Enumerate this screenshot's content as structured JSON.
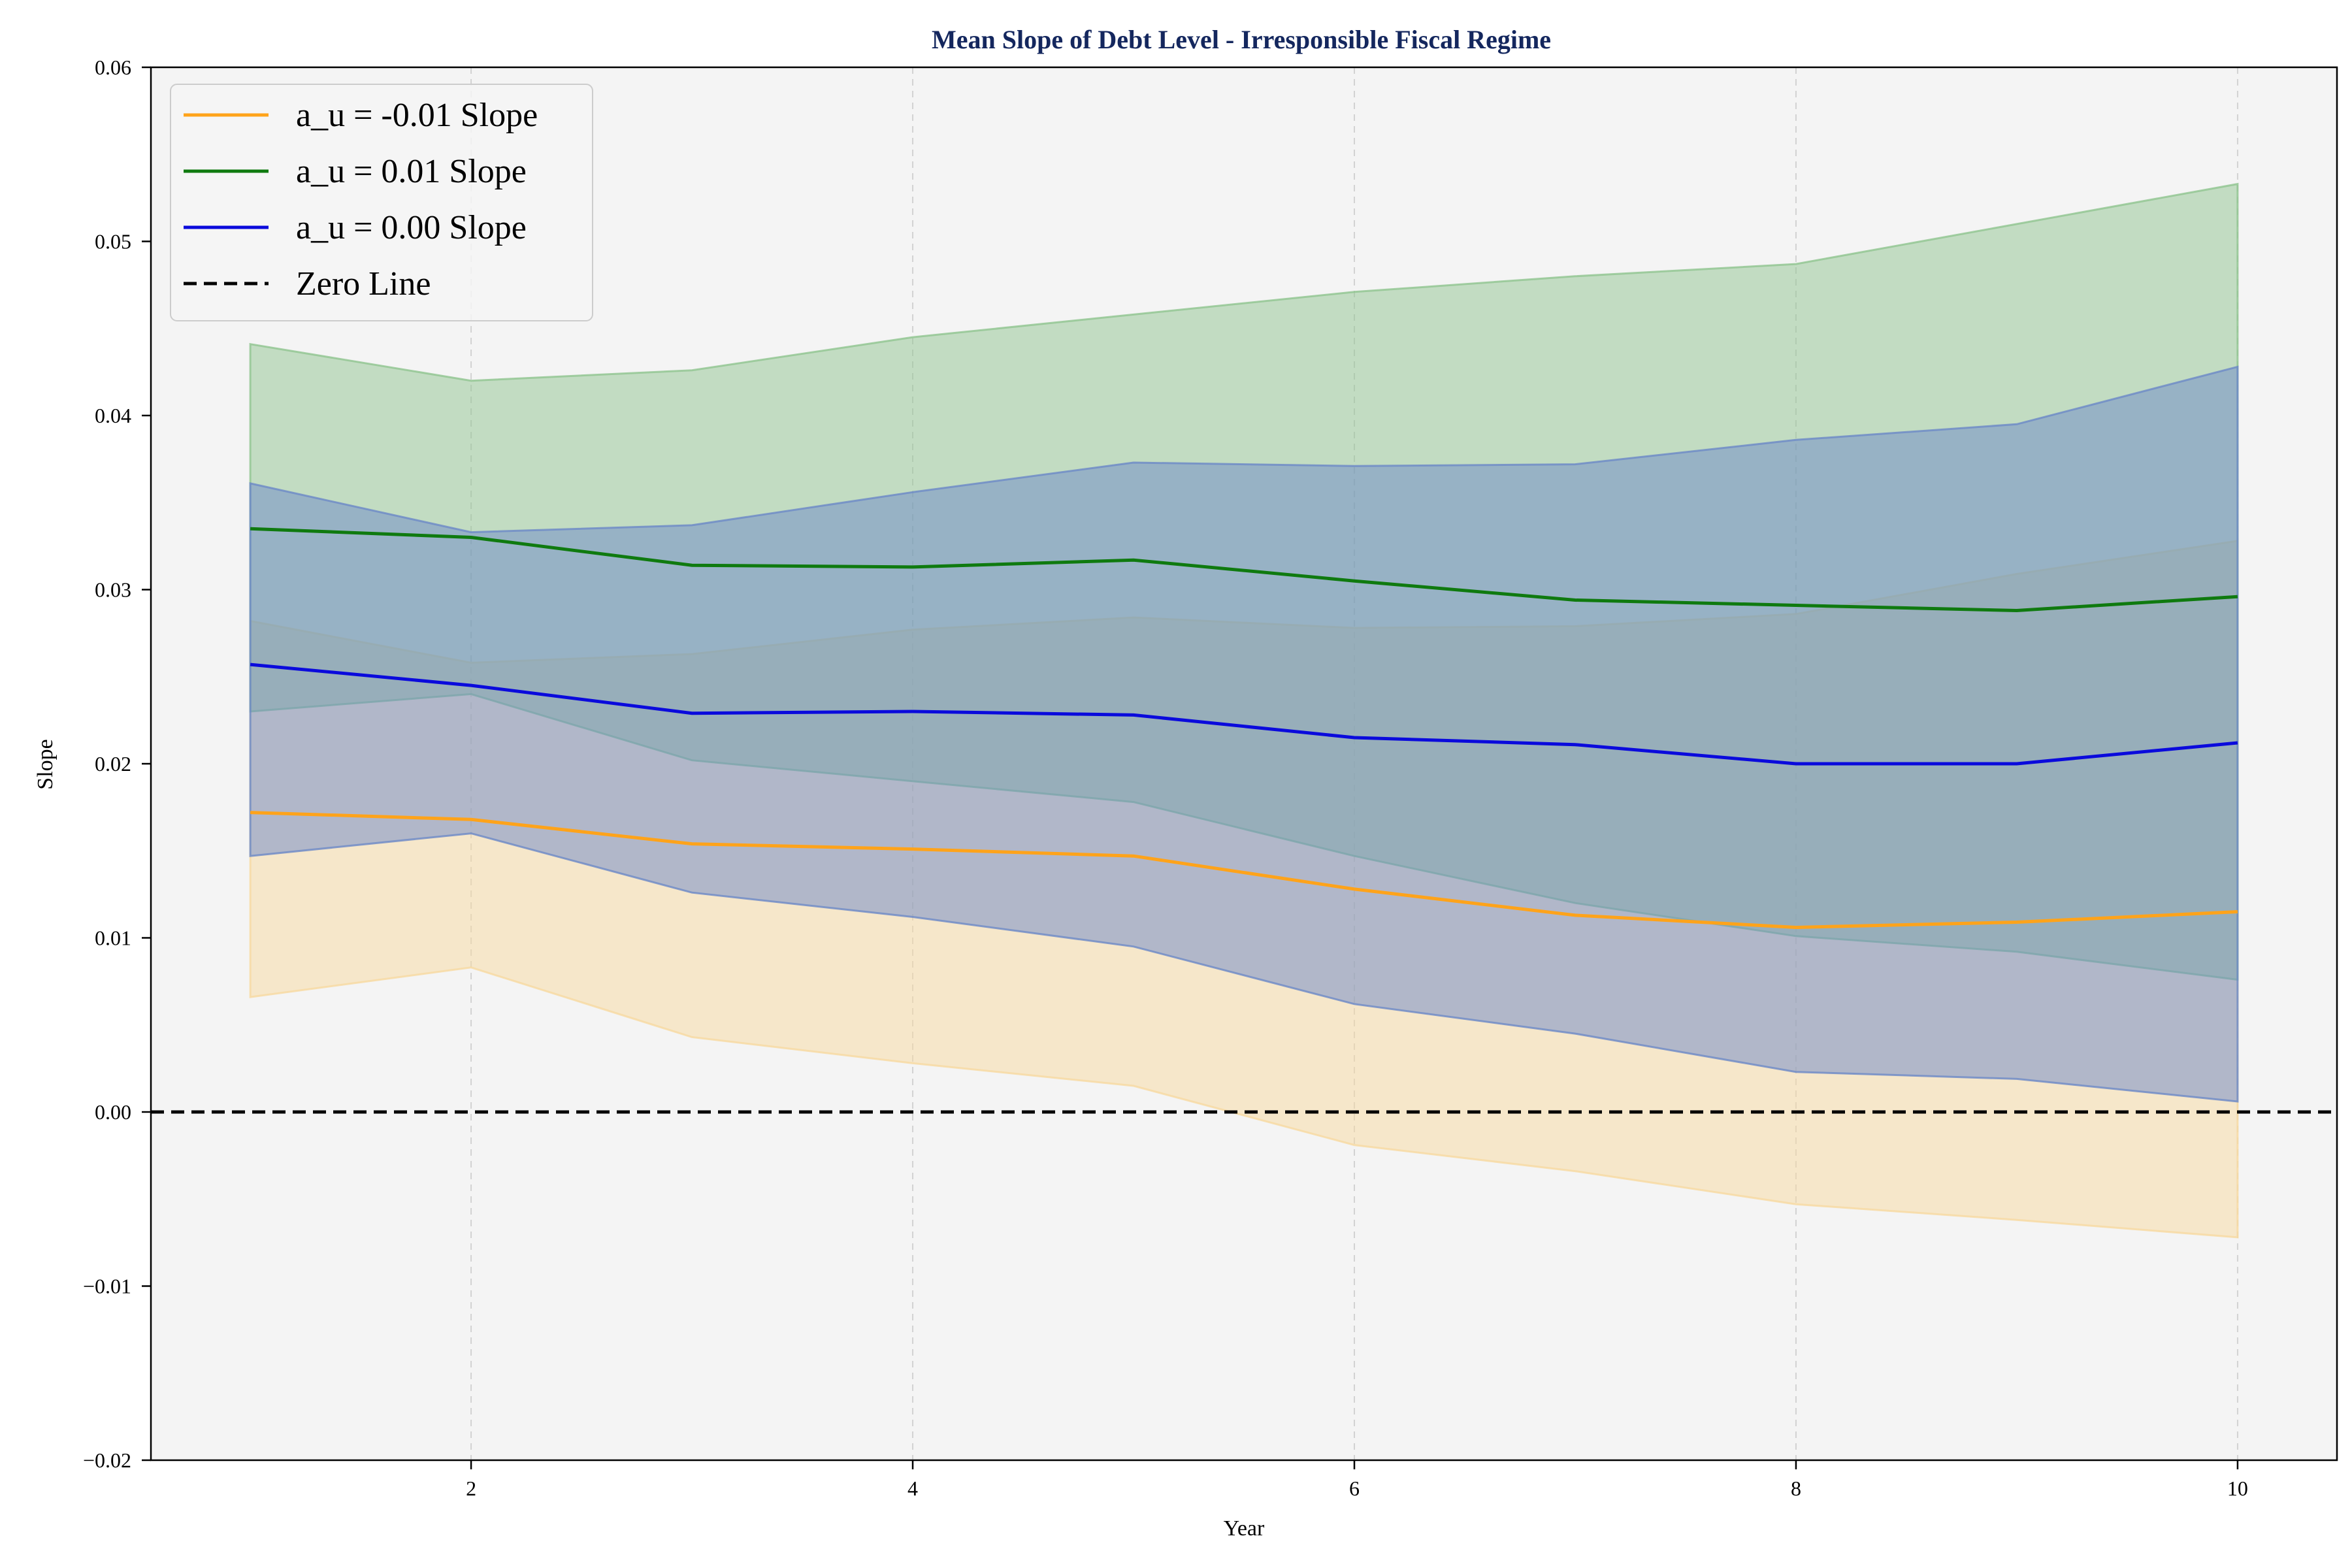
{
  "chart_data": {
    "type": "line",
    "title": "Mean Slope of Debt Level - Irresponsible Fiscal Regime",
    "xlabel": "Year",
    "ylabel": "Slope",
    "xlim": [
      0.55,
      10.45
    ],
    "ylim": [
      -0.02,
      0.06
    ],
    "x": [
      1,
      2,
      3,
      4,
      5,
      6,
      7,
      8,
      9,
      10
    ],
    "xticks": [
      2,
      4,
      6,
      8,
      10
    ],
    "xtick_labels": [
      "2",
      "4",
      "6",
      "8",
      "10"
    ],
    "yticks": [
      -0.02,
      -0.01,
      0.0,
      0.01,
      0.02,
      0.03,
      0.04,
      0.05,
      0.06
    ],
    "ytick_labels": [
      "−0.02",
      "−0.01",
      "0.00",
      "0.01",
      "0.02",
      "0.03",
      "0.04",
      "0.05",
      "0.06"
    ],
    "grid": "vertical dashed",
    "legend_position": "top-left",
    "series": [
      {
        "name": "a_u = -0.01 Slope",
        "color": "#ffa31a",
        "band_color": "#f7d9a0",
        "mean": [
          0.0172,
          0.0168,
          0.0154,
          0.0151,
          0.0147,
          0.0128,
          0.0113,
          0.0106,
          0.0109,
          0.0115
        ],
        "lower": [
          0.0066,
          0.0083,
          0.0043,
          0.0028,
          0.0015,
          -0.0019,
          -0.0034,
          -0.0053,
          -0.0062,
          -0.0072
        ],
        "upper": [
          0.0282,
          0.0258,
          0.0263,
          0.0277,
          0.0284,
          0.0278,
          0.0279,
          0.0286,
          0.0309,
          0.0328
        ]
      },
      {
        "name": "a_u = 0.01 Slope",
        "color": "#0f7a0f",
        "band_color": "#8fc48f",
        "mean": [
          0.0335,
          0.033,
          0.0314,
          0.0313,
          0.0317,
          0.0305,
          0.0294,
          0.0291,
          0.0288,
          0.0296
        ],
        "lower": [
          0.023,
          0.024,
          0.0202,
          0.019,
          0.0178,
          0.0147,
          0.012,
          0.0101,
          0.0092,
          0.0076
        ],
        "upper": [
          0.0441,
          0.042,
          0.0426,
          0.0445,
          0.0458,
          0.0471,
          0.048,
          0.0487,
          0.051,
          0.0533
        ]
      },
      {
        "name": "a_u = 0.00 Slope",
        "color": "#0a0adc",
        "band_color": "#6b88c7",
        "mean": [
          0.0257,
          0.0245,
          0.0229,
          0.023,
          0.0228,
          0.0215,
          0.0211,
          0.02,
          0.02,
          0.0212
        ],
        "lower": [
          0.0147,
          0.016,
          0.0126,
          0.0112,
          0.0095,
          0.0062,
          0.0045,
          0.0023,
          0.0019,
          0.0006
        ],
        "upper": [
          0.0361,
          0.0333,
          0.0337,
          0.0356,
          0.0373,
          0.0371,
          0.0372,
          0.0386,
          0.0395,
          0.0428
        ]
      }
    ],
    "reference_line": {
      "name": "Zero Line",
      "y": 0.0,
      "color": "#000000",
      "style": "dashed"
    },
    "background_color": "#f4f4f4"
  }
}
